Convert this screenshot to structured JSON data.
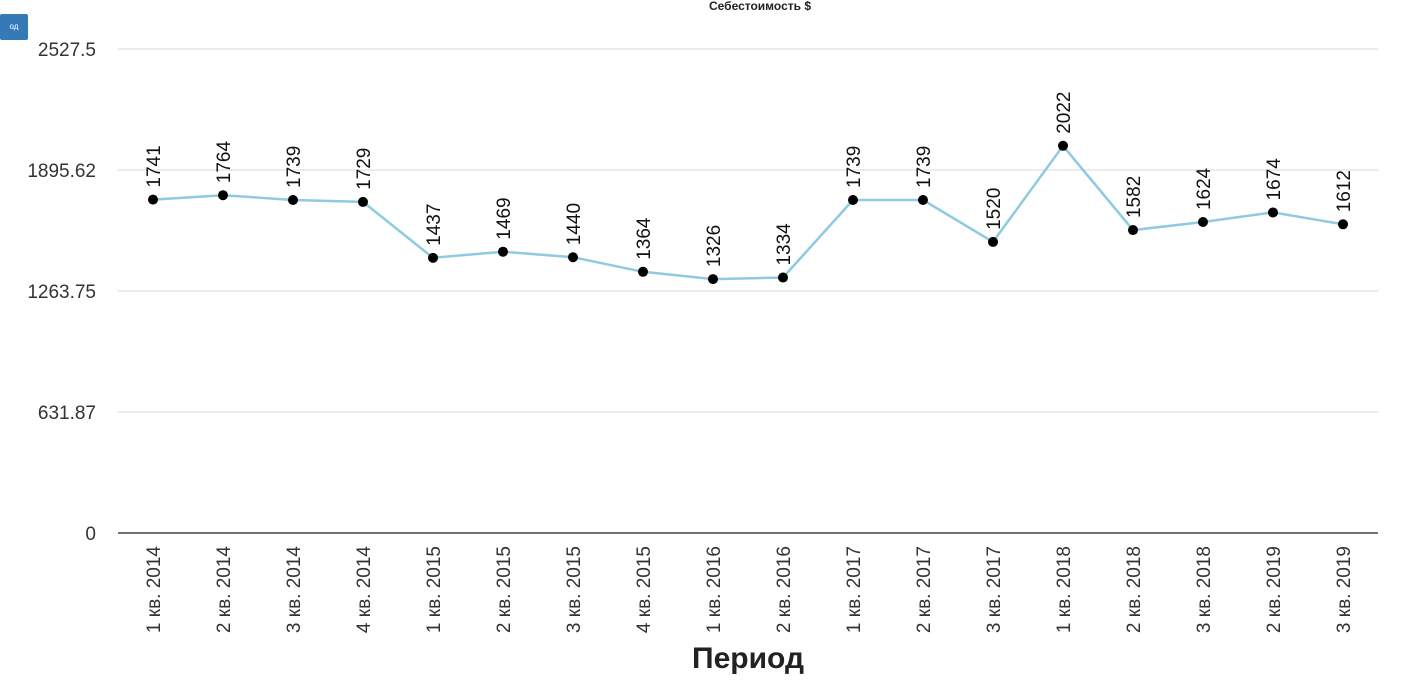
{
  "toolbar": {
    "corner_button_label": "од"
  },
  "chart_data": {
    "type": "line",
    "title": "Себестоимость $",
    "xlabel": "Период",
    "ylabel": "",
    "ylim": [
      0,
      2527.5
    ],
    "yticks": [
      "2527.5",
      "1895.62",
      "1263.75",
      "631.87",
      "0"
    ],
    "ytick_values": [
      2527.5,
      1895.62,
      1263.75,
      631.87,
      0
    ],
    "grid": true,
    "categories": [
      "1 кв. 2014",
      "2 кв. 2014",
      "3 кв. 2014",
      "4 кв. 2014",
      "1 кв. 2015",
      "2 кв. 2015",
      "3 кв. 2015",
      "4 кв. 2015",
      "1 кв. 2016",
      "2 кв. 2016",
      "1 кв. 2017",
      "2 кв. 2017",
      "3 кв. 2017",
      "1 кв. 2018",
      "2 кв. 2018",
      "3 кв. 2018",
      "2 кв. 2019",
      "3 кв. 2019"
    ],
    "series": [
      {
        "values": [
          1741,
          1764,
          1739,
          1729,
          1437,
          1469,
          1440,
          1364,
          1326,
          1334,
          1739,
          1739,
          1520,
          2022,
          1582,
          1624,
          1674,
          1612
        ],
        "color": "#8ecae0",
        "marker_color": "#000000"
      }
    ]
  }
}
